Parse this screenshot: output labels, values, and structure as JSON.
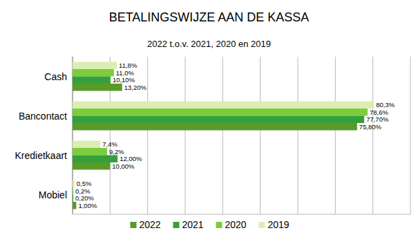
{
  "chart_data": {
    "type": "bar",
    "orientation": "horizontal",
    "title": "BETALINGSWIJZE AAN DE KASSA",
    "subtitle": "2022 t.o.v. 2021, 2020 en 2019",
    "categories": [
      "Cash",
      "Bancontact",
      "Kredietkaart",
      "Mobiel"
    ],
    "series": [
      {
        "name": "2022",
        "color": "#5a9a28",
        "values": [
          13.2,
          75.8,
          10.0,
          1.0
        ],
        "value_labels": [
          "13,20%",
          "75,80%",
          "10,00%",
          "1,00%"
        ]
      },
      {
        "name": "2021",
        "color": "#34a03c",
        "values": [
          10.1,
          77.7,
          12.0,
          0.2
        ],
        "value_labels": [
          "10,10%",
          "77,70%",
          "12,00%",
          "0,20%"
        ]
      },
      {
        "name": "2020",
        "color": "#7dcc3c",
        "values": [
          11.0,
          78.6,
          9.2,
          0.2
        ],
        "value_labels": [
          "11,0%",
          "78,6%",
          "9,2%",
          "0,2%"
        ]
      },
      {
        "name": "2019",
        "color": "#dcedb4",
        "values": [
          11.8,
          80.3,
          7.4,
          0.5
        ],
        "value_labels": [
          "11,8%",
          "80,3%",
          "7,4%",
          "0,5%"
        ]
      }
    ],
    "xlim": [
      0,
      90
    ],
    "xticks": [
      0,
      10,
      20,
      30,
      40,
      50,
      60,
      70,
      80,
      90
    ],
    "grid": true,
    "data_labels": true,
    "tick_labels": false,
    "legend": "bottom"
  }
}
